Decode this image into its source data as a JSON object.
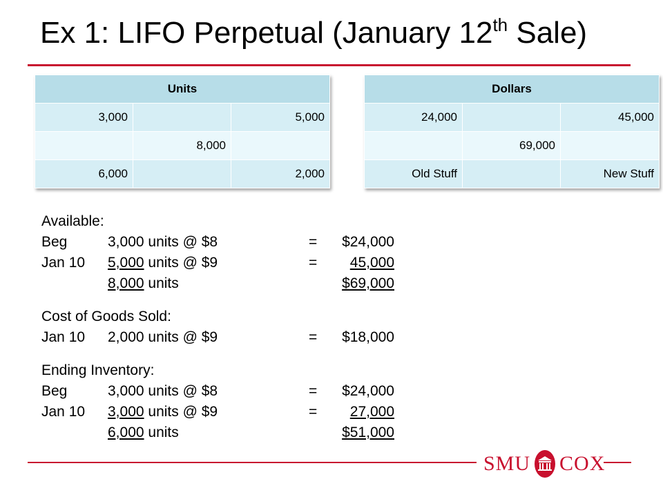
{
  "title": {
    "main": "Ex 1: LIFO Perpetual (January 12",
    "sup": "th",
    "end": " Sale)"
  },
  "units_table": {
    "header": "Units",
    "rows": [
      [
        "3,000",
        "",
        "5,000"
      ],
      [
        "",
        "8,000",
        ""
      ],
      [
        "6,000",
        "",
        "2,000"
      ]
    ]
  },
  "dollars_table": {
    "header": "Dollars",
    "rows": [
      [
        "24,000",
        "",
        "45,000"
      ],
      [
        "",
        "69,000",
        ""
      ],
      [
        "Old Stuff",
        "",
        "New Stuff"
      ]
    ]
  },
  "available": {
    "heading": "Available:",
    "lines": [
      {
        "label": "Beg",
        "qty": "3,000",
        "unit_text": " units @ $8",
        "eq": "=",
        "amount": "$24,000"
      },
      {
        "label": "Jan 10",
        "qty": "5,000",
        "unit_text": " units @ $9",
        "eq": "=",
        "amount": "45,000"
      },
      {
        "label": "",
        "qty": "8,000",
        "unit_text": " units",
        "eq": "",
        "amount": "$69,000"
      }
    ]
  },
  "cogs": {
    "heading": "Cost of Goods Sold:",
    "lines": [
      {
        "label": "Jan 10",
        "qty": "2,000",
        "unit_text": " units @ $9",
        "eq": "=",
        "amount": "$18,000"
      }
    ]
  },
  "ending": {
    "heading": "Ending Inventory:",
    "lines": [
      {
        "label": "Beg",
        "qty": "3,000",
        "unit_text": " units @ $8",
        "eq": "=",
        "amount": "$24,000"
      },
      {
        "label": "Jan 10",
        "qty": "3,000",
        "unit_text": " units @ $9",
        "eq": "=",
        "amount": "27,000"
      },
      {
        "label": "",
        "qty": "6,000",
        "unit_text": " units",
        "eq": "",
        "amount": "$51,000"
      }
    ]
  },
  "logo": {
    "left": "SMU",
    "right": "COX"
  },
  "colors": {
    "accent": "#c8102e",
    "table_header": "#b7dde8",
    "table_band_1": "#d6eef5",
    "table_band_2": "#eaf8fc"
  }
}
